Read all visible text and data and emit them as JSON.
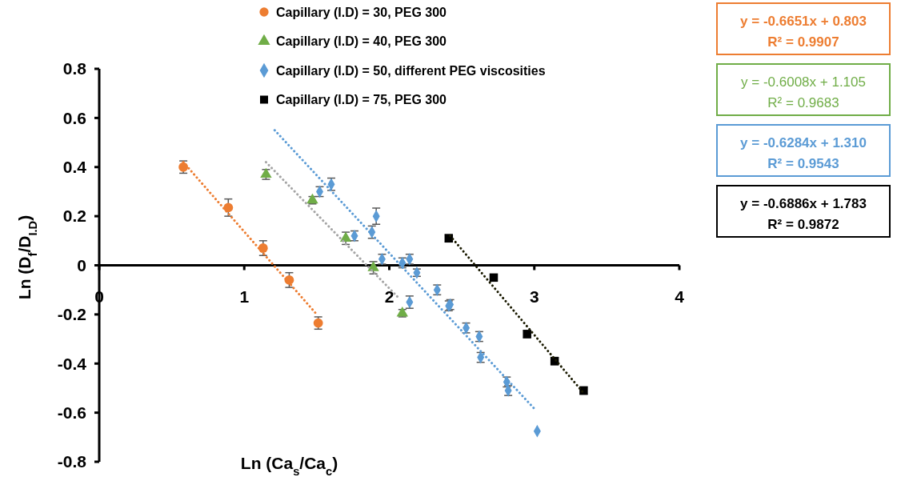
{
  "chart_data": {
    "type": "scatter",
    "xlabel": "Ln (Ca$_{s}$/Ca$_{c}$)",
    "ylabel": "Ln (D$_{f}$/D$_{I.D}$)",
    "xlim": [
      0,
      4
    ],
    "xticks": [
      0,
      1,
      2,
      3,
      4
    ],
    "ylim": [
      -0.8,
      0.8
    ],
    "yticks": [
      -0.8,
      -0.6,
      -0.4,
      -0.2,
      0,
      0.2,
      0.4,
      0.6,
      0.8
    ],
    "grid": false,
    "legend": "top",
    "series": [
      {
        "name": "Capillary (I.D) = 30, PEG 300",
        "color": "#ed7d31",
        "marker": "circle",
        "x": [
          0.58,
          0.89,
          1.13,
          1.31,
          1.51
        ],
        "values": [
          0.4,
          0.235,
          0.07,
          -0.06,
          -0.235
        ],
        "errors": [
          0.025,
          0.035,
          0.03,
          0.03,
          0.025
        ]
      },
      {
        "name": "Capillary (I.D) = 40, PEG 300",
        "color": "#70ad47",
        "marker": "triangle",
        "x": [
          1.15,
          1.47,
          1.7,
          1.89,
          2.09
        ],
        "values": [
          0.37,
          0.265,
          0.11,
          -0.01,
          -0.195
        ],
        "errors": [
          0.02,
          0.015,
          0.025,
          0.025,
          0.015
        ]
      },
      {
        "name": "Capillary (I.D) = 50, different PEG viscosities",
        "color": "#5b9bd5",
        "marker": "diamond",
        "x": [
          1.52,
          1.6,
          1.76,
          1.88,
          1.91,
          1.95,
          2.09,
          2.14,
          2.19,
          2.14,
          2.33,
          2.41,
          2.42,
          2.53,
          2.62,
          2.63,
          2.81,
          2.82,
          3.02
        ],
        "values": [
          0.3,
          0.33,
          0.12,
          0.135,
          0.2,
          0.025,
          0.01,
          0.025,
          -0.03,
          -0.15,
          -0.1,
          -0.165,
          -0.16,
          -0.255,
          -0.29,
          -0.375,
          -0.475,
          -0.51,
          -0.675
        ],
        "errors": [
          0.02,
          0.025,
          0.02,
          0.025,
          0.033,
          0.02,
          0.02,
          0.02,
          0.015,
          0.025,
          0.02,
          0.02,
          0.02,
          0.02,
          0.02,
          0.02,
          0.02,
          0.02,
          null
        ]
      },
      {
        "name": "Capillary (I.D) = 75, PEG 300",
        "color": "#000000",
        "marker": "square",
        "x": [
          2.41,
          2.72,
          2.95,
          3.14,
          3.34
        ],
        "values": [
          0.11,
          -0.05,
          -0.28,
          -0.39,
          -0.51
        ],
        "errors": [
          0.015,
          0.012,
          0.015,
          0.015,
          0.015
        ]
      },
      {
        "type": "line",
        "color": "#ed7d31",
        "marker": "none",
        "line_style": "dotted",
        "x": [
          0.58,
          1.5
        ],
        "values": [
          0.42,
          -0.2
        ]
      },
      {
        "type": "line",
        "color": "#a5a5a5",
        "marker": "none",
        "line_style": "dotted",
        "x": [
          1.15,
          2.06
        ],
        "values": [
          0.42,
          -0.13
        ]
      },
      {
        "type": "line",
        "color": "#5b9bd5",
        "marker": "none",
        "line_style": "dotted",
        "x": [
          1.21,
          3.01
        ],
        "values": [
          0.55,
          -0.59
        ]
      },
      {
        "type": "line",
        "color": "#1a1a00",
        "marker": "none",
        "line_style": "dotted",
        "x": [
          2.42,
          3.34
        ],
        "values": [
          0.12,
          -0.52
        ]
      }
    ],
    "annotations": [
      "y = -0.6651x + 0.803\nR² = 0.9907",
      "y = -0.6008x + 1.105\nR² = 0.9683",
      "y = -0.6284x + 1.310\nR² = 0.9543",
      "y = -0.6886x + 1.783\nR² = 0.9872"
    ]
  }
}
